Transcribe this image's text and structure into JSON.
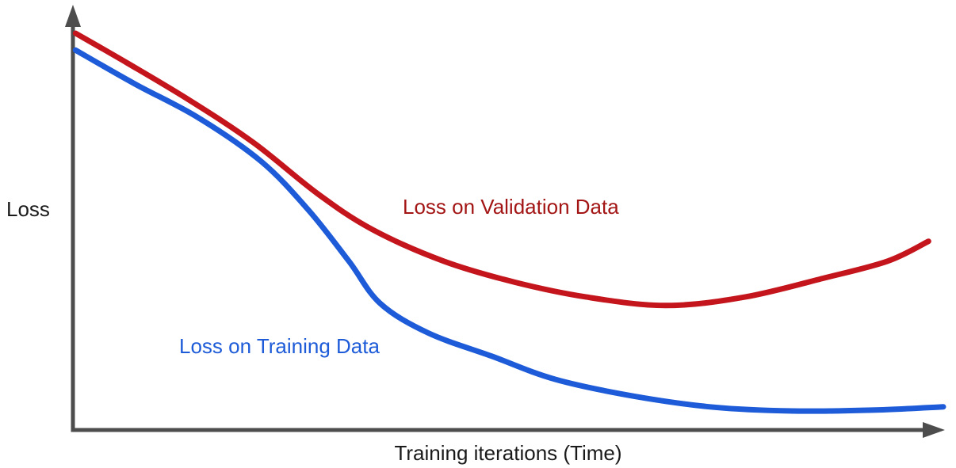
{
  "page": {
    "background": "#ffffff"
  },
  "chart_data": {
    "type": "line",
    "title": "",
    "xlabel": "Training iterations (Time)",
    "ylabel": "Loss",
    "xlim": [
      0,
      100
    ],
    "ylim": [
      0,
      1
    ],
    "grid": false,
    "legend_position": "inline-annotations",
    "axis_color": "#4d4d4d",
    "series": [
      {
        "name": "training",
        "label": "Loss on Training Data",
        "color": "#1d5bd8",
        "label_color": "#1d5bd8",
        "points": [
          [
            0.3,
            0.9
          ],
          [
            7.1,
            0.82
          ],
          [
            14.4,
            0.74
          ],
          [
            21.7,
            0.635
          ],
          [
            27.1,
            0.52
          ],
          [
            31.7,
            0.4
          ],
          [
            35.3,
            0.3
          ],
          [
            40.8,
            0.23
          ],
          [
            48.1,
            0.175
          ],
          [
            55.4,
            0.12
          ],
          [
            64.5,
            0.08
          ],
          [
            73.6,
            0.054
          ],
          [
            82.7,
            0.045
          ],
          [
            91.8,
            0.047
          ],
          [
            100,
            0.055
          ]
        ]
      },
      {
        "name": "validation",
        "label": "Loss on Validation Data",
        "color": "#c4151c",
        "label_color": "#a31515",
        "points": [
          [
            0.3,
            0.94
          ],
          [
            6.2,
            0.87
          ],
          [
            13.5,
            0.78
          ],
          [
            20.8,
            0.68
          ],
          [
            28.1,
            0.56
          ],
          [
            34.4,
            0.475
          ],
          [
            42.6,
            0.4
          ],
          [
            50.8,
            0.35
          ],
          [
            59.0,
            0.315
          ],
          [
            68.1,
            0.295
          ],
          [
            77.2,
            0.315
          ],
          [
            86.3,
            0.36
          ],
          [
            93.6,
            0.4
          ],
          [
            98.3,
            0.447
          ]
        ]
      }
    ]
  }
}
